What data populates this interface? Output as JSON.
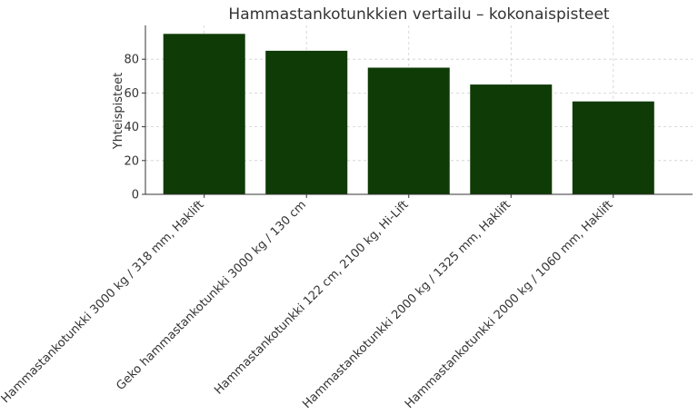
{
  "chart_data": {
    "type": "bar",
    "title": "Hammastankotunkkien vertailu – kokonaispisteet",
    "xlabel": "",
    "ylabel": "Yhteispisteet",
    "categories": [
      "Hammastankotunkki 3000 kg / 318 mm, Haklift",
      "Geko hammastankotunkki 3000 kg / 130 cm",
      "Hammastankotunkki 122 cm, 2100 kg, Hi-Lift",
      "Hammastankotunkki 2000 kg / 1325 mm, Haklift",
      "Hammastankotunkki 2000 kg / 1060 mm, Haklift"
    ],
    "values": [
      95,
      85,
      75,
      65,
      55
    ],
    "ylim": [
      0,
      100
    ],
    "yticks": [
      "0",
      "20",
      "40",
      "60",
      "80"
    ],
    "grid": true,
    "bar_color": "#0f3b06"
  }
}
